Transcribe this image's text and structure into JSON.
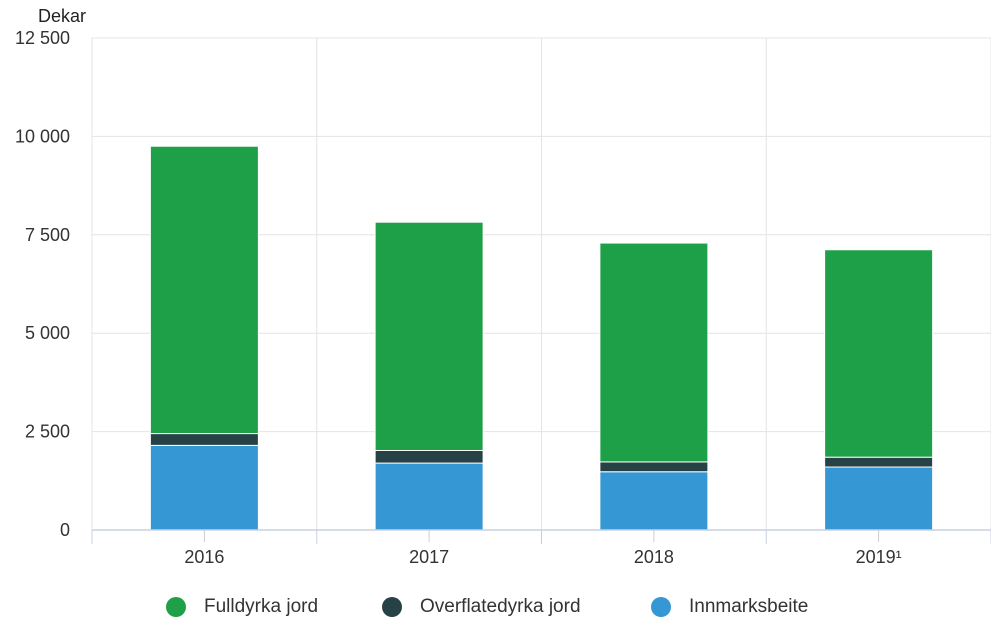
{
  "chart_data": {
    "type": "bar",
    "stacked": true,
    "ylabel": "Dekar",
    "ylim": [
      0,
      12500
    ],
    "yticks": [
      0,
      2500,
      5000,
      7500,
      10000,
      12500
    ],
    "ytick_labels": [
      "0",
      "2 500",
      "5 000",
      "7 500",
      "10 000",
      "12 500"
    ],
    "categories": [
      "2016",
      "2017",
      "2018",
      "2019¹"
    ],
    "grid": true,
    "legend_position": "bottom",
    "series": [
      {
        "name": "Innmarksbeite",
        "color": "#3597d3",
        "values": [
          2150,
          1700,
          1480,
          1600
        ]
      },
      {
        "name": "Overflatedyrka jord",
        "color": "#274247",
        "values": [
          300,
          320,
          250,
          250
        ]
      },
      {
        "name": "Fulldyrka jord",
        "color": "#1da048",
        "values": [
          7300,
          5800,
          5560,
          5270
        ]
      }
    ]
  },
  "legend": [
    {
      "label": "Fulldyrka jord",
      "color": "#1da048"
    },
    {
      "label": "Overflatedyrka jord",
      "color": "#274247"
    },
    {
      "label": "Innmarksbeite",
      "color": "#3597d3"
    }
  ]
}
